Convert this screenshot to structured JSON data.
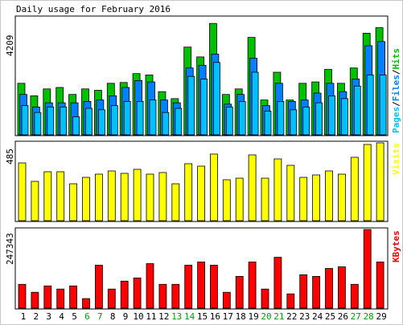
{
  "title": "Daily usage for February 2016",
  "colors": {
    "background": "#ffffff",
    "panel_border": "#000000",
    "hits": "#00c000",
    "files": "#0080ff",
    "pages": "#00c0ff",
    "visits": "#ffff00",
    "kbytes": "#ff0000",
    "weekend_label": "#00a000"
  },
  "chart_data": [
    {
      "type": "bar",
      "title": "Daily usage for February 2016",
      "categories": [
        "1",
        "2",
        "3",
        "4",
        "5",
        "6",
        "7",
        "8",
        "9",
        "10",
        "11",
        "12",
        "13",
        "14",
        "15",
        "16",
        "17",
        "18",
        "19",
        "20",
        "21",
        "22",
        "23",
        "24",
        "25",
        "26",
        "27",
        "28",
        "29"
      ],
      "weekend_days": [
        "6",
        "7",
        "13",
        "14",
        "20",
        "21",
        "27",
        "28"
      ],
      "y_max_label": "4209",
      "ylim": [
        0,
        4209
      ],
      "legend": {
        "pages": "Pages",
        "sep1": "/",
        "files": "Files",
        "sep2": "/",
        "hits": "Hits"
      },
      "series": [
        {
          "name": "Hits",
          "values": [
            1850,
            1400,
            1650,
            1700,
            1450,
            1650,
            1600,
            1850,
            1880,
            2200,
            2150,
            1550,
            1300,
            3150,
            2800,
            4000,
            1450,
            1650,
            3500,
            1250,
            2250,
            1250,
            1850,
            1900,
            2350,
            1850,
            2400,
            3650,
            3850
          ]
        },
        {
          "name": "Files",
          "values": [
            1450,
            1000,
            1150,
            1150,
            1150,
            1200,
            1250,
            1400,
            1700,
            1950,
            1900,
            1250,
            1150,
            2400,
            2500,
            2900,
            1100,
            1450,
            2750,
            1050,
            1850,
            1200,
            1250,
            1500,
            1850,
            1550,
            2000,
            3200,
            3350
          ]
        },
        {
          "name": "Pages",
          "values": [
            1050,
            800,
            1000,
            1000,
            650,
            950,
            900,
            1050,
            1200,
            1200,
            1250,
            800,
            950,
            2100,
            2000,
            2600,
            1000,
            1200,
            2250,
            850,
            1200,
            900,
            1000,
            1150,
            1400,
            1300,
            1750,
            2150,
            2150
          ]
        }
      ]
    },
    {
      "type": "bar",
      "categories": [
        "1",
        "2",
        "3",
        "4",
        "5",
        "6",
        "7",
        "8",
        "9",
        "10",
        "11",
        "12",
        "13",
        "14",
        "15",
        "16",
        "17",
        "18",
        "19",
        "20",
        "21",
        "22",
        "23",
        "24",
        "25",
        "26",
        "27",
        "28",
        "29"
      ],
      "y_max_label": "485",
      "ylim": [
        0,
        485
      ],
      "legend": {
        "visits": "Visits"
      },
      "series": [
        {
          "name": "Visits",
          "values": [
            360,
            245,
            305,
            305,
            230,
            270,
            290,
            310,
            295,
            320,
            290,
            300,
            230,
            355,
            340,
            415,
            255,
            265,
            410,
            265,
            385,
            345,
            270,
            285,
            310,
            290,
            395,
            475,
            485
          ]
        }
      ]
    },
    {
      "type": "bar",
      "categories": [
        "1",
        "2",
        "3",
        "4",
        "5",
        "6",
        "7",
        "8",
        "9",
        "10",
        "11",
        "12",
        "13",
        "14",
        "15",
        "16",
        "17",
        "18",
        "19",
        "20",
        "21",
        "22",
        "23",
        "24",
        "25",
        "26",
        "27",
        "28",
        "29"
      ],
      "y_max_label": "247343",
      "ylim": [
        0,
        247343
      ],
      "legend": {
        "kbytes": "KBytes"
      },
      "series": [
        {
          "name": "KBytes",
          "values": [
            75000,
            50000,
            70000,
            60000,
            70000,
            30000,
            135000,
            60000,
            85000,
            95000,
            140000,
            75000,
            75000,
            135000,
            145000,
            135000,
            50000,
            100000,
            145000,
            60000,
            160000,
            45000,
            105000,
            100000,
            125000,
            130000,
            75000,
            247343,
            145000
          ]
        }
      ]
    }
  ]
}
